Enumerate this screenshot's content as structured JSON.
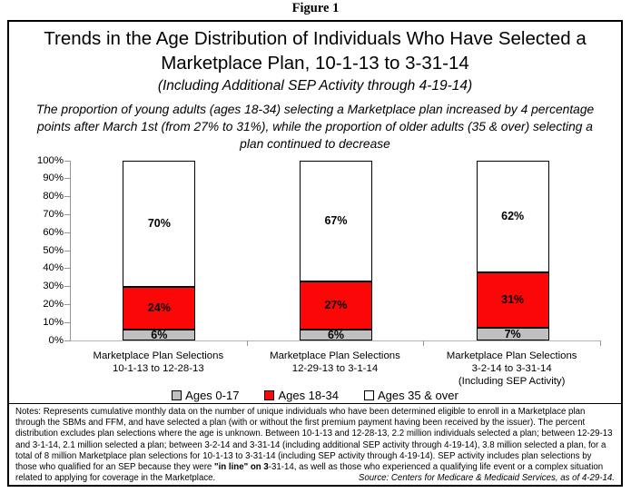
{
  "figure_label": "Figure 1",
  "title": {
    "line1": "Trends in the Age Distribution of Individuals Who Have Selected a",
    "line2": "Marketplace Plan, 10-1-13 to 3-31-14",
    "line3": "(Including Additional SEP Activity through 4-19-14)"
  },
  "subtitle": "The proportion of young adults (ages 18-34) selecting a Marketplace plan increased by 4 percentage points after March 1st (from 27% to 31%), while the proportion of older adults (35 & over) selecting a plan continued to decrease",
  "chart_data": {
    "type": "bar",
    "stacked": true,
    "title": "Trends in the Age Distribution of Individuals Who Have Selected a Marketplace Plan, 10-1-13 to 3-31-14 (Including Additional SEP Activity through 4-19-14)",
    "categories": [
      [
        "Marketplace Plan Selections",
        "10-1-13 to 12-28-13"
      ],
      [
        "Marketplace Plan Selections",
        "12-29-13 to 3-1-14"
      ],
      [
        "Marketplace Plan Selections",
        "3-2-14 to 3-31-14",
        "(Including SEP Activity)"
      ]
    ],
    "series": [
      {
        "name": "Ages 0-17",
        "color": "#c0c0c0",
        "values": [
          6,
          6,
          7
        ]
      },
      {
        "name": "Ages 18-34",
        "color": "#fb0707",
        "values": [
          24,
          27,
          31
        ]
      },
      {
        "name": "Ages 35 & over",
        "color": "#ffffff",
        "values": [
          70,
          67,
          62
        ]
      }
    ],
    "value_suffix": "%",
    "ylim": [
      0,
      100
    ],
    "ytick_step": 10,
    "ytick_suffix": "%",
    "grid": false,
    "legend_position": "bottom",
    "xlabel": "",
    "ylabel": ""
  },
  "notes": {
    "prefix": "Notes:",
    "text_before": "  Represents cumulative monthly data on the number of unique individuals who have been determined eligible to enroll in a Marketplace plan through the SBMs and FFM, and have selected a plan (with or without the first premium payment having been received by the issuer).  The percent distribution excludes plan selections where the age is unknown.  Between 10-1-13 and 12-28-13, 2.2 million individuals selected a plan; between 12-29-13 and 3-1-14, 2.1 million selected a plan; between 3-2-14 and 3-31-14 (including additional SEP activity through 4-19-14), 3.8 million selected a plan, for a total of 8 million Marketplace plan selections for 10-1-13 to 3-31-14 (including SEP activity through 4-19-14). SEP activity includes plan selections by those who qualified for an SEP because they were ",
    "text_bold": "\"in line\" on 3",
    "text_after": "-31-14, as well as those who experienced a qualifying life event or a complex situation related to applying for coverage in the Marketplace.",
    "source": "Source:  Centers for Medicare & Medicaid Services, as of 4-29-14."
  }
}
